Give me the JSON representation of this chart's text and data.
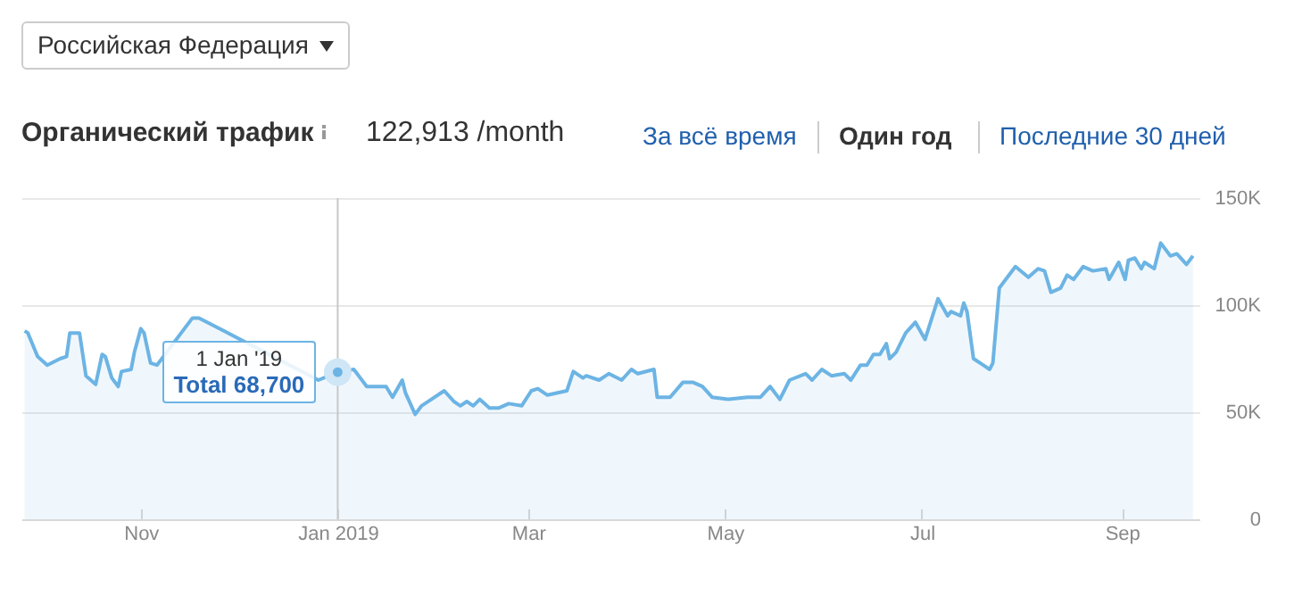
{
  "chart_data": {
    "type": "area",
    "title": "Органический трафик",
    "subtitle": "122,913 /month",
    "annotations": [
      "Российская Федерация",
      "За всё время",
      "Один год",
      "Последние 30 дней",
      {
        "text": "1 Jan '19",
        "x": "2019-01-01",
        "y": 68700
      },
      {
        "text": "Total 68,700",
        "x": "2019-01-01",
        "y": 68700
      }
    ],
    "x": [
      "2018-09-26",
      "2018-09-27",
      "2018-09-30",
      "2018-10-03",
      "2018-10-07",
      "2018-10-09",
      "2018-10-10",
      "2018-10-13",
      "2018-10-15",
      "2018-10-18",
      "2018-10-20",
      "2018-10-21",
      "2018-10-23",
      "2018-10-25",
      "2018-10-26",
      "2018-10-29",
      "2018-10-30",
      "2018-11-01",
      "2018-11-02",
      "2018-11-04",
      "2018-11-06",
      "2018-11-11",
      "2018-11-15",
      "2018-11-17",
      "2018-11-19",
      "2018-11-21",
      "2018-11-24",
      "2018-11-29",
      "2018-12-05",
      "2018-12-10",
      "2018-12-16",
      "2018-12-21",
      "2018-12-26",
      "2019-01-01",
      "2019-01-06",
      "2019-01-08",
      "2019-01-10",
      "2019-01-16",
      "2019-01-18",
      "2019-01-21",
      "2019-01-22",
      "2019-01-25",
      "2019-01-27",
      "2019-01-30",
      "2019-02-03",
      "2019-02-06",
      "2019-02-08",
      "2019-02-10",
      "2019-02-12",
      "2019-02-14",
      "2019-02-17",
      "2019-02-20",
      "2019-02-23",
      "2019-02-27",
      "2019-03-02",
      "2019-03-04",
      "2019-03-07",
      "2019-03-13",
      "2019-03-15",
      "2019-03-18",
      "2019-03-19",
      "2019-03-23",
      "2019-03-26",
      "2019-03-30",
      "2019-04-02",
      "2019-04-04",
      "2019-04-09",
      "2019-04-10",
      "2019-04-14",
      "2019-04-18",
      "2019-04-21",
      "2019-04-24",
      "2019-04-27",
      "2019-05-02",
      "2019-05-08",
      "2019-05-12",
      "2019-05-15",
      "2019-05-18",
      "2019-05-21",
      "2019-05-26",
      "2019-05-28",
      "2019-05-31",
      "2019-06-03",
      "2019-06-07",
      "2019-06-09",
      "2019-06-12",
      "2019-06-14",
      "2019-06-16",
      "2019-06-18",
      "2019-06-20",
      "2019-06-21",
      "2019-06-23",
      "2019-06-26",
      "2019-06-29",
      "2019-07-02",
      "2019-07-06",
      "2019-07-09",
      "2019-07-10",
      "2019-07-13",
      "2019-07-14",
      "2019-07-15",
      "2019-07-17",
      "2019-07-20",
      "2019-07-22",
      "2019-07-23",
      "2019-07-25",
      "2019-07-30",
      "2019-08-03",
      "2019-08-06",
      "2019-08-08",
      "2019-08-10",
      "2019-08-13",
      "2019-08-15",
      "2019-08-17",
      "2019-08-20",
      "2019-08-23",
      "2019-08-27",
      "2019-08-28",
      "2019-08-31",
      "2019-09-02",
      "2019-09-03",
      "2019-09-05",
      "2019-09-07",
      "2019-09-08",
      "2019-09-11",
      "2019-09-13",
      "2019-09-16",
      "2019-09-18",
      "2019-09-21",
      "2019-09-23"
    ],
    "series": [
      {
        "color": "#6cb4e4",
        "values": [
          88000,
          87000,
          76000,
          72000,
          75000,
          76000,
          87000,
          87000,
          67000,
          63000,
          77000,
          76000,
          66000,
          62000,
          69000,
          70000,
          78000,
          89000,
          87000,
          73000,
          72000,
          null,
          null,
          94000,
          94000,
          null,
          null,
          null,
          null,
          null,
          null,
          null,
          65000,
          68700,
          70000,
          66000,
          62000,
          62000,
          57000,
          65000,
          59000,
          49000,
          53000,
          56000,
          60000,
          55000,
          53000,
          55000,
          53000,
          56000,
          52000,
          52000,
          54000,
          53000,
          60000,
          61000,
          58000,
          60000,
          69000,
          66000,
          67000,
          65000,
          68000,
          65000,
          70000,
          68000,
          70000,
          57000,
          57000,
          64000,
          64000,
          62000,
          57000,
          56000,
          57000,
          57000,
          62000,
          56000,
          65000,
          68000,
          65000,
          70000,
          67000,
          68000,
          65000,
          72000,
          72000,
          77000,
          77000,
          82000,
          75000,
          78000,
          87000,
          92000,
          84000,
          103000,
          95000,
          97000,
          95000,
          101000,
          97000,
          75000,
          72000,
          70000,
          73000,
          108000,
          118000,
          113000,
          117000,
          116000,
          106000,
          108000,
          114000,
          112000,
          118000,
          116000,
          117000,
          112000,
          120000,
          112000,
          121000,
          122000,
          117000,
          120000,
          117000,
          129000,
          123000,
          124000,
          119000,
          123000
        ]
      }
    ],
    "xlim": [
      "2018-09-25",
      "2019-09-25"
    ],
    "xticks": [
      {
        "value": "2018-11-01",
        "label": "Nov"
      },
      {
        "value": "2019-01-01",
        "label": "Jan 2019"
      },
      {
        "value": "2019-03-01",
        "label": "Mar"
      },
      {
        "value": "2019-05-01",
        "label": "May"
      },
      {
        "value": "2019-07-01",
        "label": "Jul"
      },
      {
        "value": "2019-09-01",
        "label": "Sep"
      }
    ],
    "ylim": [
      0,
      150000
    ],
    "yticks": [
      0,
      {
        "value": 50000,
        "label": "50K"
      },
      {
        "value": 100000,
        "label": "100K"
      },
      {
        "value": 150000,
        "label": "150K"
      }
    ],
    "ref_lines": [
      {
        "axis": "x",
        "value": "2019-01-01",
        "color": "#c8c8c8"
      }
    ],
    "grid": "y",
    "marker": "none"
  }
}
